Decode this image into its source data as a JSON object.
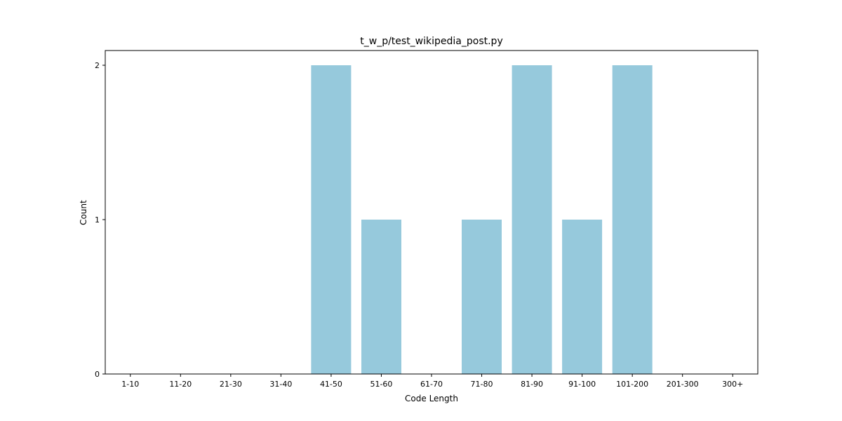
{
  "chart_data": {
    "type": "bar",
    "title": "t_w_p/test_wikipedia_post.py",
    "xlabel": "Code Length",
    "ylabel": "Count",
    "categories": [
      "1-10",
      "11-20",
      "21-30",
      "31-40",
      "41-50",
      "51-60",
      "61-70",
      "71-80",
      "81-90",
      "91-100",
      "101-200",
      "201-300",
      "300+"
    ],
    "values": [
      0,
      0,
      0,
      0,
      2,
      1,
      0,
      1,
      2,
      1,
      2,
      0,
      0
    ],
    "yticks": [
      "0",
      "1",
      "2"
    ],
    "ylim": [
      0,
      2.1
    ],
    "grid": false,
    "bar_color": "#96c9dc"
  }
}
